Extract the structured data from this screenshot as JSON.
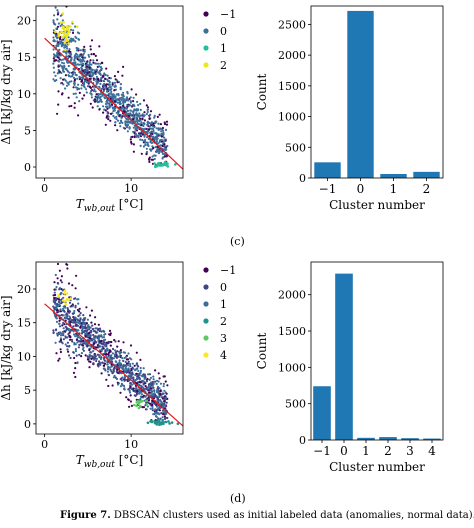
{
  "panels": [
    {
      "tag": "(c)",
      "scatter": {
        "ylabel": "Δh [kJ/kg dry air]",
        "xlabel_main": "T",
        "xlabel_sub": "wb,out",
        "xlabel_unit": " [°C]",
        "xlim": [
          -1,
          16
        ],
        "ylim": [
          -1.5,
          22
        ],
        "xticks": [
          0,
          10
        ],
        "yticks": [
          0,
          5,
          10,
          15,
          20
        ],
        "clusters": [
          {
            "label": "−1",
            "color": "#440154"
          },
          {
            "label": "0",
            "color": "#3b6e9a"
          },
          {
            "label": "1",
            "color": "#22c195"
          },
          {
            "label": "2",
            "color": "#f1e51d"
          }
        ],
        "fit_line": {
          "x": [
            0,
            16
          ],
          "y": [
            17.6,
            -0.3
          ]
        }
      },
      "counts": {
        "xlabel": "Cluster number",
        "ylabel": "Count",
        "categories": [
          "−1",
          "0",
          "1",
          "2"
        ],
        "values": [
          255,
          2720,
          65,
          100
        ],
        "yticks": [
          0,
          500,
          1000,
          1500,
          2000,
          2500
        ],
        "ymax": 2800
      }
    },
    {
      "tag": "(d)",
      "scatter": {
        "ylabel": "Δh [kJ/kg dry air]",
        "xlabel_main": "T",
        "xlabel_sub": "wb,out",
        "xlabel_unit": " [°C]",
        "xlim": [
          -1,
          16
        ],
        "ylim": [
          -1.5,
          24
        ],
        "xticks": [
          0,
          10
        ],
        "yticks": [
          0,
          5,
          10,
          15,
          20
        ],
        "clusters": [
          {
            "label": "−1",
            "color": "#440154"
          },
          {
            "label": "0",
            "color": "#414487"
          },
          {
            "label": "1",
            "color": "#3b6e9a"
          },
          {
            "label": "2",
            "color": "#21918c"
          },
          {
            "label": "3",
            "color": "#5ec962"
          },
          {
            "label": "4",
            "color": "#fde725"
          }
        ],
        "fit_line": {
          "x": [
            0,
            16
          ],
          "y": [
            17.8,
            -0.3
          ]
        }
      },
      "counts": {
        "xlabel": "Cluster number",
        "ylabel": "Count",
        "categories": [
          "−1",
          "0",
          "1",
          "2",
          "3",
          "4"
        ],
        "values": [
          740,
          2290,
          30,
          40,
          25,
          20
        ],
        "yticks": [
          0,
          500,
          1000,
          1500,
          2000
        ],
        "ymax": 2450
      }
    }
  ],
  "chart_data": [
    {
      "type": "scatter",
      "xlabel": "T_wb,out [°C]",
      "ylabel": "Δh [kJ/kg dry air]",
      "xlim": [
        -1,
        16
      ],
      "ylim": [
        -1.5,
        22
      ],
      "series": [
        {
          "name": "−1",
          "color": "#440154"
        },
        {
          "name": "0",
          "color": "#3b6e9a"
        },
        {
          "name": "1",
          "color": "#22c195"
        },
        {
          "name": "2",
          "color": "#f1e51d"
        }
      ],
      "fit_line": {
        "x": [
          0,
          16
        ],
        "y": [
          17.6,
          -0.3
        ],
        "color": "#e31a1c"
      },
      "legend": "outside-right"
    },
    {
      "type": "bar",
      "categories": [
        "−1",
        "0",
        "1",
        "2"
      ],
      "values": [
        255,
        2720,
        65,
        100
      ],
      "xlabel": "Cluster number",
      "ylabel": "Count",
      "ylim": [
        0,
        2800
      ],
      "color": "#1f77b4"
    },
    {
      "type": "scatter",
      "xlabel": "T_wb,out [°C]",
      "ylabel": "Δh [kJ/kg dry air]",
      "xlim": [
        -1,
        16
      ],
      "ylim": [
        -1.5,
        24
      ],
      "series": [
        {
          "name": "−1",
          "color": "#440154"
        },
        {
          "name": "0",
          "color": "#414487"
        },
        {
          "name": "1",
          "color": "#3b6e9a"
        },
        {
          "name": "2",
          "color": "#21918c"
        },
        {
          "name": "3",
          "color": "#5ec962"
        },
        {
          "name": "4",
          "color": "#fde725"
        }
      ],
      "fit_line": {
        "x": [
          0,
          16
        ],
        "y": [
          17.8,
          -0.3
        ],
        "color": "#e31a1c"
      },
      "legend": "outside-right"
    },
    {
      "type": "bar",
      "categories": [
        "−1",
        "0",
        "1",
        "2",
        "3",
        "4"
      ],
      "values": [
        740,
        2290,
        30,
        40,
        25,
        20
      ],
      "xlabel": "Cluster number",
      "ylabel": "Count",
      "ylim": [
        0,
        2450
      ],
      "color": "#1f77b4"
    }
  ],
  "caption": {
    "label": "Figure 7.",
    "text": " DBSCAN clusters used as initial labeled data (anomalies, normal data)."
  },
  "colors": {
    "bar": "#1f77b4",
    "fit_line": "#e31a1c"
  }
}
